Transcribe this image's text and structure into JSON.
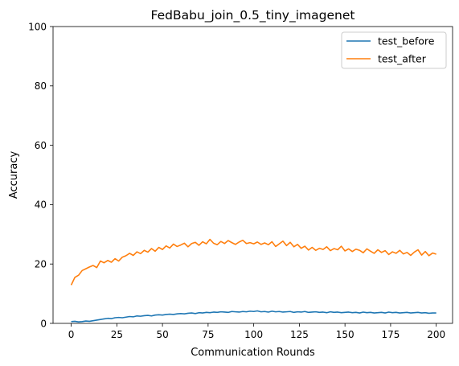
{
  "chart_data": {
    "type": "line",
    "title": "FedBabu_join_0.5_tiny_imagenet",
    "xlabel": "Communication Rounds",
    "ylabel": "Accuracy",
    "xlim": [
      -9.95,
      208.95
    ],
    "ylim": [
      0,
      100
    ],
    "xticks": [
      "0",
      "25",
      "50",
      "75",
      "100",
      "125",
      "150",
      "175",
      "200"
    ],
    "yticks": [
      "0",
      "20",
      "40",
      "60",
      "80",
      "100"
    ],
    "grid": false,
    "legend_position": "top-right",
    "series": [
      {
        "name": "test_before",
        "color": "#1f77b4",
        "x": [
          0,
          2,
          4,
          6,
          8,
          10,
          12,
          14,
          16,
          18,
          20,
          22,
          24,
          26,
          28,
          30,
          32,
          34,
          36,
          38,
          40,
          42,
          44,
          46,
          48,
          50,
          52,
          54,
          56,
          58,
          60,
          62,
          64,
          66,
          68,
          70,
          72,
          74,
          76,
          78,
          80,
          82,
          84,
          86,
          88,
          90,
          92,
          94,
          96,
          98,
          100,
          102,
          104,
          106,
          108,
          110,
          112,
          114,
          116,
          118,
          120,
          122,
          124,
          126,
          128,
          130,
          132,
          134,
          136,
          138,
          140,
          142,
          144,
          146,
          148,
          150,
          152,
          154,
          156,
          158,
          160,
          162,
          164,
          166,
          168,
          170,
          172,
          174,
          176,
          178,
          180,
          182,
          184,
          186,
          188,
          190,
          192,
          194,
          196,
          198,
          200
        ],
        "y": [
          0.6,
          0.7,
          0.5,
          0.6,
          0.8,
          0.7,
          0.9,
          1.1,
          1.3,
          1.5,
          1.7,
          1.6,
          1.9,
          2.0,
          1.9,
          2.1,
          2.3,
          2.2,
          2.5,
          2.4,
          2.6,
          2.7,
          2.5,
          2.8,
          2.9,
          2.8,
          3.0,
          3.1,
          3.0,
          3.2,
          3.3,
          3.2,
          3.4,
          3.5,
          3.3,
          3.6,
          3.5,
          3.7,
          3.6,
          3.8,
          3.7,
          3.9,
          3.8,
          3.7,
          4.0,
          3.9,
          3.8,
          4.0,
          3.9,
          4.1,
          4.0,
          4.2,
          3.9,
          4.0,
          3.8,
          4.1,
          3.9,
          4.0,
          3.8,
          3.9,
          4.0,
          3.7,
          3.9,
          3.8,
          4.0,
          3.7,
          3.8,
          3.9,
          3.7,
          3.8,
          3.6,
          3.9,
          3.7,
          3.8,
          3.6,
          3.7,
          3.8,
          3.6,
          3.7,
          3.5,
          3.8,
          3.6,
          3.7,
          3.5,
          3.6,
          3.7,
          3.5,
          3.8,
          3.6,
          3.7,
          3.5,
          3.6,
          3.7,
          3.5,
          3.6,
          3.7,
          3.5,
          3.6,
          3.4,
          3.5,
          3.5
        ]
      },
      {
        "name": "test_after",
        "color": "#ff7f0e",
        "x": [
          0,
          2,
          4,
          6,
          8,
          10,
          12,
          14,
          16,
          18,
          20,
          22,
          24,
          26,
          28,
          30,
          32,
          34,
          36,
          38,
          40,
          42,
          44,
          46,
          48,
          50,
          52,
          54,
          56,
          58,
          60,
          62,
          64,
          66,
          68,
          70,
          72,
          74,
          76,
          78,
          80,
          82,
          84,
          86,
          88,
          90,
          92,
          94,
          96,
          98,
          100,
          102,
          104,
          106,
          108,
          110,
          112,
          114,
          116,
          118,
          120,
          122,
          124,
          126,
          128,
          130,
          132,
          134,
          136,
          138,
          140,
          142,
          144,
          146,
          148,
          150,
          152,
          154,
          156,
          158,
          160,
          162,
          164,
          166,
          168,
          170,
          172,
          174,
          176,
          178,
          180,
          182,
          184,
          186,
          188,
          190,
          192,
          194,
          196,
          198,
          200
        ],
        "y": [
          12.9,
          15.5,
          16.2,
          17.8,
          18.4,
          19.0,
          19.5,
          18.8,
          21.0,
          20.4,
          21.2,
          20.6,
          21.8,
          21.0,
          22.3,
          22.8,
          23.6,
          22.9,
          24.1,
          23.5,
          24.6,
          24.0,
          25.2,
          24.3,
          25.6,
          24.9,
          26.1,
          25.4,
          26.7,
          25.9,
          26.4,
          27.0,
          25.8,
          26.9,
          27.3,
          26.3,
          27.5,
          26.8,
          28.3,
          27.0,
          26.5,
          27.6,
          26.9,
          27.9,
          27.2,
          26.6,
          27.4,
          28.0,
          26.9,
          27.2,
          26.8,
          27.4,
          26.6,
          27.1,
          26.5,
          27.5,
          25.9,
          26.8,
          27.7,
          26.2,
          27.3,
          25.8,
          26.6,
          25.3,
          26.0,
          24.7,
          25.6,
          24.6,
          25.3,
          24.9,
          25.8,
          24.5,
          25.2,
          24.8,
          26.0,
          24.4,
          25.1,
          24.2,
          25.0,
          24.6,
          23.8,
          25.1,
          24.3,
          23.6,
          24.8,
          23.9,
          24.5,
          23.2,
          24.1,
          23.6,
          24.6,
          23.4,
          23.9,
          22.9,
          24.0,
          24.8,
          23.0,
          24.2,
          22.8,
          23.7,
          23.3
        ]
      }
    ]
  }
}
